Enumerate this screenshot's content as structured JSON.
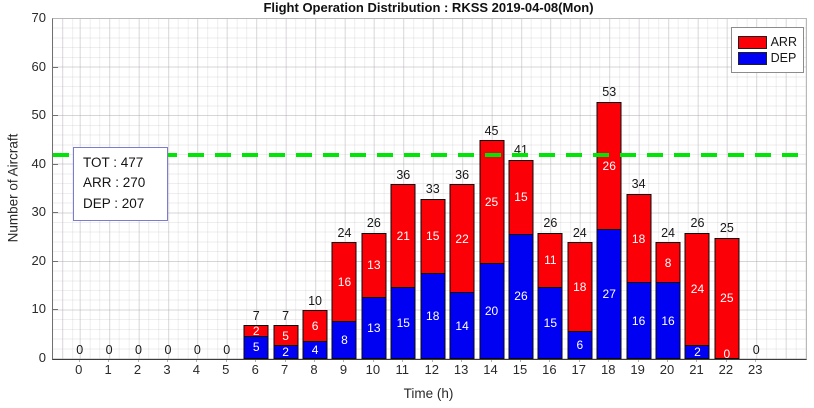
{
  "chart_data": {
    "type": "bar",
    "stacked": true,
    "title": "Flight Operation Distribution : RKSS 2019-04-08(Mon)",
    "xlabel": "Time (h)",
    "ylabel": "Number of Aircraft",
    "ylim": [
      0,
      70
    ],
    "yticks": [
      0,
      10,
      20,
      30,
      40,
      50,
      60,
      70
    ],
    "grid": true,
    "categories": [
      "0",
      "1",
      "2",
      "3",
      "4",
      "5",
      "6",
      "7",
      "8",
      "9",
      "10",
      "11",
      "12",
      "13",
      "14",
      "15",
      "16",
      "17",
      "18",
      "19",
      "20",
      "21",
      "22",
      "23"
    ],
    "series": [
      {
        "name": "DEP",
        "color": "#0000f2",
        "values": [
          0,
          0,
          0,
          0,
          0,
          0,
          5,
          2,
          4,
          8,
          13,
          15,
          18,
          14,
          20,
          26,
          15,
          6,
          27,
          16,
          16,
          2,
          0,
          0
        ]
      },
      {
        "name": "ARR",
        "color": "#fb0006",
        "values": [
          0,
          0,
          0,
          0,
          0,
          0,
          2,
          5,
          6,
          16,
          13,
          21,
          15,
          22,
          25,
          15,
          11,
          18,
          26,
          18,
          8,
          24,
          25,
          0
        ]
      }
    ],
    "totals": [
      0,
      0,
      0,
      0,
      0,
      0,
      7,
      7,
      10,
      24,
      26,
      36,
      33,
      36,
      45,
      41,
      26,
      24,
      53,
      34,
      24,
      26,
      25,
      0
    ],
    "dep_labels": [
      "",
      "",
      "",
      "",
      "",
      "",
      "5",
      "2",
      "4",
      "8",
      "13",
      "15",
      "18",
      "14",
      "20",
      "26",
      "15",
      "6",
      "27",
      "16",
      "16",
      "2",
      "0",
      ""
    ],
    "arr_labels": [
      "",
      "",
      "",
      "",
      "",
      "",
      "2",
      "5",
      "6",
      "16",
      "13",
      "21",
      "15",
      "22",
      "25",
      "15",
      "11",
      "18",
      "26",
      "18",
      "8",
      "24",
      "25",
      ""
    ],
    "reference_line": {
      "y": 42,
      "color": "#00e408",
      "style": "dashed"
    },
    "legend_position": "top-right"
  },
  "legend": {
    "arr_label": "ARR",
    "dep_label": "DEP"
  },
  "annotation": {
    "tot": "TOT : 477",
    "arr": "ARR : 270",
    "dep": "DEP : 207"
  },
  "colors": {
    "arr": "#fb0006",
    "dep": "#0000f2",
    "reference_line": "#00e408",
    "annotation_border": "#7b7bd0"
  }
}
